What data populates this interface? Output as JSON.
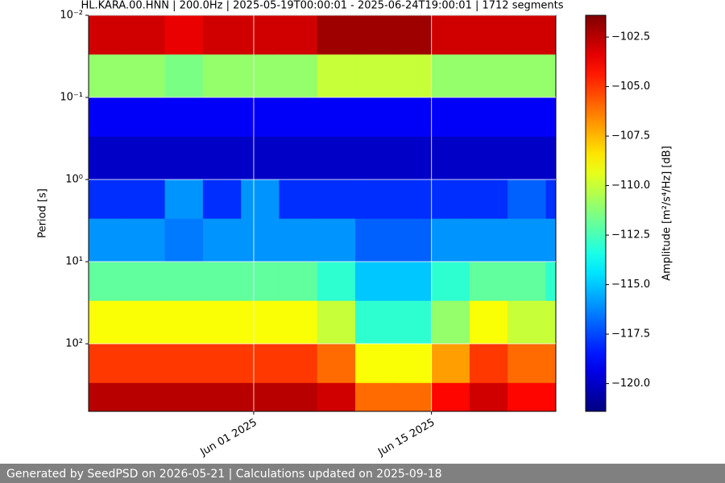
{
  "chart_data": {
    "type": "heatmap",
    "title": "HL.KARA.00.HNN | 200.0Hz | 2025-05-19T00:00:01 - 2025-06-24T19:00:01 | 1712 segments",
    "y_label": "Period [s]",
    "colorbar_label": "Amplitude [m²/s⁴/Hz] [dB]",
    "footer": "Generated by SeedPSD on 2026-05-21 | Calculations updated on 2025-09-18",
    "colormap": "jet",
    "log_y": true,
    "invert_y": true,
    "grid": true,
    "xlim": [
      "2025-05-19T00:00",
      "2025-06-24T19:00"
    ],
    "xticks": [
      {
        "value": "2025-06-01",
        "label": "Jun 01 2025"
      },
      {
        "value": "2025-06-15",
        "label": "Jun 15 2025"
      }
    ],
    "ylim": [
      0.01,
      665
    ],
    "yticks": [
      {
        "value": 0.01,
        "label": "10⁻²"
      },
      {
        "value": 0.1,
        "label": "10⁻¹"
      },
      {
        "value": 1,
        "label": "10⁰"
      },
      {
        "value": 10,
        "label": "10¹"
      },
      {
        "value": 100,
        "label": "10²"
      }
    ],
    "zlim": [
      -121.4,
      -101.4
    ],
    "zticks": [
      {
        "value": -102.5,
        "label": "−102.5"
      },
      {
        "value": -105,
        "label": "−105.0"
      },
      {
        "value": -107.5,
        "label": "−107.5"
      },
      {
        "value": -110,
        "label": "−110.0"
      },
      {
        "value": -112.5,
        "label": "−112.5"
      },
      {
        "value": -115,
        "label": "−115.0"
      },
      {
        "value": -117.5,
        "label": "−117.5"
      },
      {
        "value": -120,
        "label": "−120.0"
      }
    ],
    "x_edges": [
      "2025-05-19T00:00",
      "2025-05-22T00:00",
      "2025-05-25T00:00",
      "2025-05-28T00:00",
      "2025-05-31T00:00",
      "2025-06-03T00:00",
      "2025-06-06T00:00",
      "2025-06-09T00:00",
      "2025-06-12T00:00",
      "2025-06-15T00:00",
      "2025-06-18T00:00",
      "2025-06-21T00:00",
      "2025-06-24T00:00",
      "2025-06-24T19:00"
    ],
    "y_edges": [
      0.01,
      0.03,
      0.1,
      0.3,
      1,
      3,
      10,
      30,
      100,
      300,
      665
    ],
    "z": [
      [
        -103,
        -103,
        -103.5,
        -103,
        -103,
        -103,
        -102,
        -102,
        -102,
        -103,
        -103,
        -103,
        -103
      ],
      [
        -111,
        -111,
        -111.5,
        -111,
        -111,
        -111,
        -110,
        -110,
        -110,
        -111,
        -111,
        -111,
        -111
      ],
      [
        -119,
        -119,
        -119,
        -119,
        -119,
        -119,
        -119,
        -119,
        -119,
        -119,
        -119,
        -119,
        -119
      ],
      [
        -120,
        -120,
        -120,
        -120,
        -120,
        -120,
        -120,
        -120,
        -120,
        -120,
        -120,
        -120,
        -120
      ],
      [
        -118,
        -118,
        -116,
        -118,
        -116,
        -118,
        -118,
        -118,
        -118,
        -118,
        -118,
        -117,
        -118
      ],
      [
        -116,
        -116,
        -116.5,
        -116,
        -116,
        -116,
        -116,
        -117,
        -117,
        -116,
        -116,
        -116,
        -116
      ],
      [
        -112,
        -112,
        -112,
        -112,
        -112,
        -112,
        -113,
        -115,
        -115,
        -113,
        -112,
        -112,
        -113
      ],
      [
        -109,
        -109,
        -109,
        -109,
        -109,
        -109,
        -110,
        -113,
        -113,
        -111,
        -109,
        -110,
        -110
      ],
      [
        -105,
        -105,
        -105,
        -105,
        -105,
        -105,
        -106,
        -109,
        -109,
        -107,
        -105,
        -106,
        -106
      ],
      [
        -102.5,
        -102.5,
        -102.5,
        -102.5,
        -102.5,
        -102.5,
        -103,
        -106,
        -106,
        -104,
        -103,
        -104,
        -104
      ]
    ]
  }
}
